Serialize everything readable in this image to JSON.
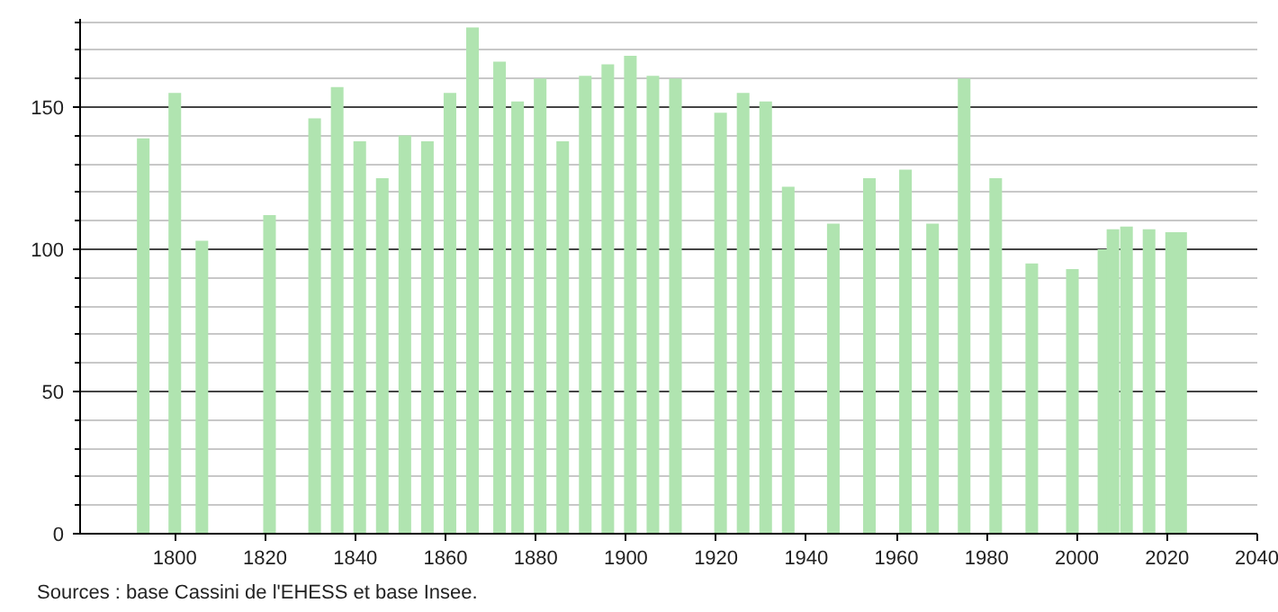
{
  "chart_data": {
    "type": "bar",
    "color": "#b0e4b0",
    "x": [
      1793,
      1800,
      1806,
      1821,
      1831,
      1836,
      1841,
      1846,
      1851,
      1856,
      1861,
      1866,
      1872,
      1876,
      1881,
      1886,
      1891,
      1896,
      1901,
      1906,
      1911,
      1921,
      1926,
      1931,
      1936,
      1946,
      1954,
      1962,
      1968,
      1975,
      1982,
      1990,
      1999,
      2006,
      2008,
      2011,
      2016,
      2021,
      2023
    ],
    "values": [
      139,
      155,
      103,
      112,
      146,
      157,
      138,
      125,
      140,
      138,
      155,
      178,
      166,
      152,
      160,
      138,
      161,
      165,
      168,
      161,
      160,
      148,
      155,
      152,
      122,
      109,
      125,
      128,
      109,
      160,
      125,
      95,
      93,
      100,
      107,
      108,
      107,
      106,
      106
    ],
    "xlim": [
      1779,
      2040
    ],
    "xticks": [
      1800,
      1820,
      1840,
      1860,
      1880,
      1900,
      1920,
      1940,
      1960,
      1980,
      2000,
      2020,
      2040
    ],
    "ylim": [
      0,
      181
    ],
    "yticks": [
      0,
      {
        "value": 10,
        "label": null
      },
      {
        "value": 20,
        "label": null
      },
      {
        "value": 30,
        "label": null
      },
      {
        "value": 40,
        "label": null
      },
      50,
      {
        "value": 60,
        "label": null
      },
      {
        "value": 70,
        "label": null
      },
      {
        "value": 80,
        "label": null
      },
      {
        "value": 90,
        "label": null
      },
      100,
      {
        "value": 110,
        "label": null
      },
      {
        "value": 120,
        "label": null
      },
      {
        "value": 130,
        "label": null
      },
      {
        "value": 140,
        "label": null
      },
      150,
      {
        "value": 160,
        "label": null
      },
      {
        "value": 170,
        "label": null
      },
      {
        "value": 180,
        "label": null
      }
    ],
    "grid": "y",
    "annotations": [
      "Sources : base Cassini de l'EHESS et base Insee."
    ]
  }
}
